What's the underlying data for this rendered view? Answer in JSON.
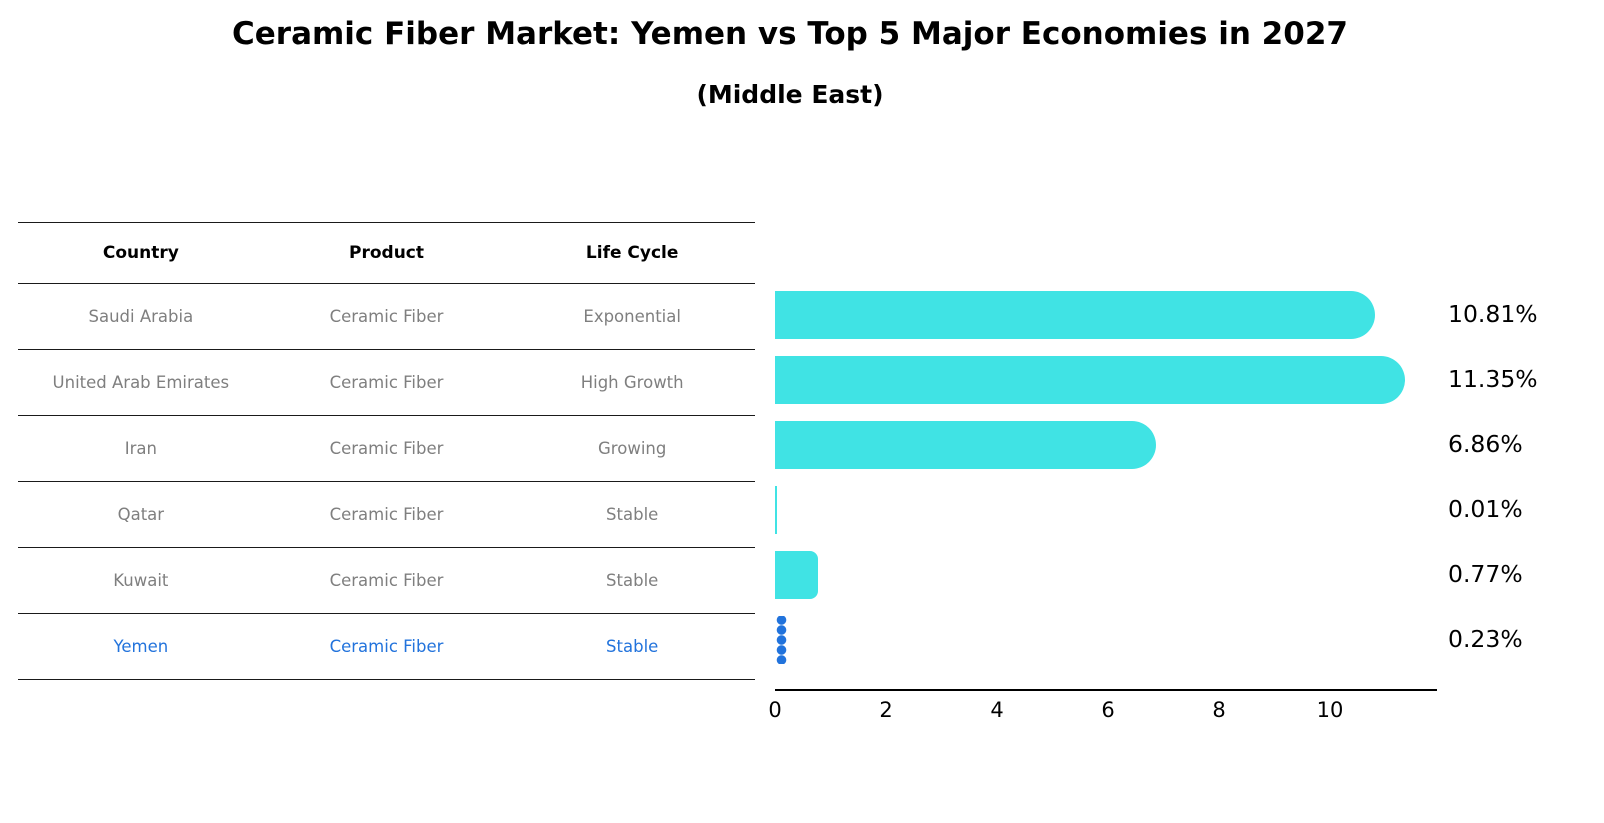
{
  "title": "Ceramic Fiber Market: Yemen vs Top 5 Major Economies in 2027",
  "subtitle": "(Middle East)",
  "table": {
    "headers": [
      "Country",
      "Product",
      "Life Cycle"
    ],
    "rows": [
      {
        "country": "Saudi Arabia",
        "product": "Ceramic Fiber",
        "life_cycle": "Exponential",
        "highlight": false
      },
      {
        "country": "United Arab Emirates",
        "product": "Ceramic Fiber",
        "life_cycle": "High Growth",
        "highlight": false
      },
      {
        "country": "Iran",
        "product": "Ceramic Fiber",
        "life_cycle": "Growing",
        "highlight": false
      },
      {
        "country": "Qatar",
        "product": "Ceramic Fiber",
        "life_cycle": "Stable",
        "highlight": false
      },
      {
        "country": "Kuwait",
        "product": "Ceramic Fiber",
        "life_cycle": "Stable",
        "highlight": false
      },
      {
        "country": "Yemen",
        "product": "Ceramic Fiber",
        "life_cycle": "Stable",
        "highlight": true
      }
    ]
  },
  "chart_data": {
    "type": "bar",
    "orientation": "horizontal",
    "title": "Ceramic Fiber Market: Yemen vs Top 5 Major Economies in 2027",
    "subtitle": "(Middle East)",
    "categories": [
      "Saudi Arabia",
      "United Arab Emirates",
      "Iran",
      "Qatar",
      "Kuwait",
      "Yemen"
    ],
    "values": [
      10.81,
      11.35,
      6.86,
      0.01,
      0.77,
      0.23
    ],
    "value_labels": [
      "10.81%",
      "11.35%",
      "6.86%",
      "0.01%",
      "0.77%",
      "0.23%"
    ],
    "unit": "%",
    "x_ticks": [
      0,
      2,
      4,
      6,
      8,
      10
    ],
    "xlim": [
      0,
      11.9
    ],
    "grid": false,
    "legend": "none",
    "bar_color": "#40E3E4",
    "highlight_color": "#2273DC",
    "highlight_index": 5
  },
  "colors": {
    "bar": "#40E3E4",
    "highlight": "#2273DC",
    "row_text": "#7F7F7F",
    "header_text": "#000000",
    "table_line": "#1A1A1A",
    "background": "#FFFFFF"
  }
}
